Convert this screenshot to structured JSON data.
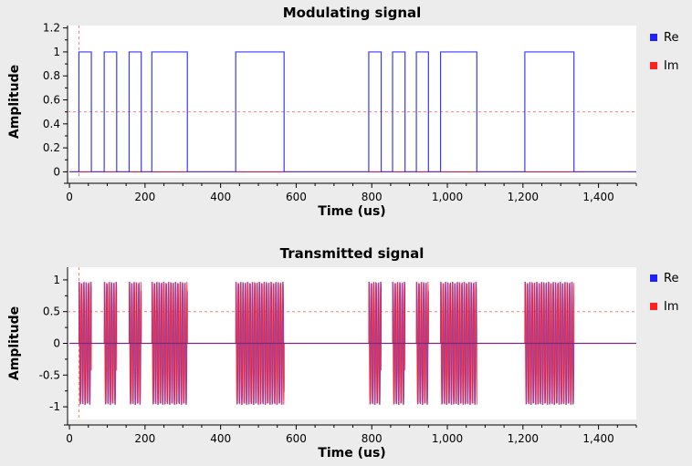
{
  "chart_data": [
    {
      "type": "line",
      "title": "Modulating signal",
      "xlabel": "Time (us)",
      "ylabel": "Amplitude",
      "xlim": [
        -5,
        1500
      ],
      "ylim": [
        -0.05,
        1.22
      ],
      "x_ticks": [
        0,
        200,
        400,
        600,
        800,
        1000,
        1200,
        1400
      ],
      "x_tick_labels": [
        "0",
        "200",
        "400",
        "600",
        "800",
        "1,000",
        "1,200",
        "1,400"
      ],
      "y_ticks": [
        0,
        0.2,
        0.4,
        0.6,
        0.8,
        1,
        1.2
      ],
      "y_tick_labels": [
        "0",
        "0.2",
        "0.4",
        "0.6",
        "0.8",
        "1",
        "1.2"
      ],
      "marker_x": 25,
      "threshold_y": 0.5,
      "legend": [
        {
          "name": "Re",
          "color": "#1f1fff"
        },
        {
          "name": "Im",
          "color": "#ff2020"
        }
      ],
      "series": [
        {
          "name": "Re",
          "color": "#3a3aff",
          "pulse_high": 1,
          "pulse_low": 0,
          "pulses": [
            [
              25,
              58
            ],
            [
              92,
              125
            ],
            [
              158,
              190
            ],
            [
              218,
              312
            ],
            [
              440,
              568
            ],
            [
              792,
              825
            ],
            [
              855,
              888
            ],
            [
              918,
              950
            ],
            [
              982,
              1078
            ],
            [
              1205,
              1335
            ]
          ]
        },
        {
          "name": "Im",
          "color": "#ff2020",
          "constant": 0
        }
      ]
    },
    {
      "type": "line",
      "title": "Transmitted signal",
      "xlabel": "Time (us)",
      "ylabel": "Amplitude",
      "xlim": [
        -5,
        1500
      ],
      "ylim": [
        -1.2,
        1.2
      ],
      "x_ticks": [
        0,
        200,
        400,
        600,
        800,
        1000,
        1200,
        1400
      ],
      "x_tick_labels": [
        "0",
        "200",
        "400",
        "600",
        "800",
        "1,000",
        "1,200",
        "1,400"
      ],
      "y_ticks": [
        -1,
        -0.5,
        0,
        0.5,
        1
      ],
      "y_tick_labels": [
        "-1",
        "-0.5",
        "0",
        "0.5",
        "1"
      ],
      "marker_x": 25,
      "threshold_y": 0.5,
      "legend": [
        {
          "name": "Re",
          "color": "#1f1fff"
        },
        {
          "name": "Im",
          "color": "#ff2020"
        }
      ],
      "carrier_period_us": 6.2,
      "carrier_amplitude": 0.97,
      "series": [
        {
          "name": "Re",
          "color": "#4040ff",
          "bursts": [
            [
              25,
              58
            ],
            [
              92,
              125
            ],
            [
              158,
              190
            ],
            [
              218,
              312
            ],
            [
              440,
              568
            ],
            [
              792,
              825
            ],
            [
              855,
              888
            ],
            [
              918,
              950
            ],
            [
              982,
              1078
            ],
            [
              1205,
              1335
            ]
          ]
        },
        {
          "name": "Im",
          "color": "#ff1a1a",
          "bursts": [
            [
              25,
              58
            ],
            [
              92,
              125
            ],
            [
              158,
              190
            ],
            [
              218,
              312
            ],
            [
              440,
              568
            ],
            [
              792,
              825
            ],
            [
              855,
              888
            ],
            [
              918,
              950
            ],
            [
              982,
              1078
            ],
            [
              1205,
              1335
            ]
          ]
        }
      ]
    }
  ]
}
